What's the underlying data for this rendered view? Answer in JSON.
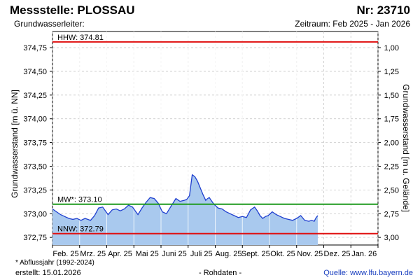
{
  "header": {
    "title": "Messstelle: PLOSSAU",
    "number": "Nr: 23710",
    "aquifer": "Grundwasserleiter:",
    "period": "Zeitraum: Feb 2025 - Jan 2026"
  },
  "footer": {
    "footnote": "* Abflussjahr (1992-2024)",
    "created": "erstellt:  15.01.2026",
    "rawdata": "- Rohdaten -",
    "source": "Quelle: www.lfu.bayern.de"
  },
  "colors": {
    "area_fill": "#a9c9ee",
    "area_line": "#1f3fcf",
    "hhw": "#e01010",
    "mw": "#1f9a1f",
    "nnw": "#e01010",
    "grid": "#c8c8c8"
  },
  "chart_data": {
    "type": "area",
    "title": "",
    "ylabel": "Grundwasserstand [m ü. NN]",
    "y2label": "Grundwasserstand [m u. Gelände]",
    "ylim": [
      372.67,
      374.92
    ],
    "y2lim": [
      3.07,
      0.82
    ],
    "yticks": [
      "374,75",
      "374,50",
      "374,25",
      "374,00",
      "373,75",
      "373,50",
      "373,25",
      "373,00",
      "372,75"
    ],
    "y2ticks": [
      "1,00",
      "1,25",
      "1,50",
      "1,75",
      "2,00",
      "2,25",
      "2,50",
      "2,75",
      "3,00"
    ],
    "xlabels": [
      "Feb. 25",
      "Mrz. 25",
      "Apr. 25",
      "Mai 25",
      "Juni 25",
      "Juli 25",
      "Aug. 25",
      "Sept. 25",
      "Okt. 25",
      "Nov. 25",
      "Dez. 25",
      "Jan. 26"
    ],
    "grid": true,
    "reference_lines": [
      {
        "label": "HHW: 374.81",
        "value": 374.81
      },
      {
        "label": "MW*: 373.10",
        "value": 373.1
      },
      {
        "label": "NNW: 372.79",
        "value": 372.79
      }
    ],
    "series": [
      {
        "x": [
          0,
          0.15,
          0.3,
          0.45,
          0.6,
          0.75,
          0.9,
          1.05,
          1.2,
          1.4,
          1.55,
          1.7,
          1.85,
          1.95,
          2.05,
          2.2,
          2.35,
          2.5,
          2.65,
          2.8,
          2.95,
          3.05,
          3.15,
          3.3,
          3.45,
          3.6,
          3.75,
          3.9,
          4.05,
          4.2,
          4.35,
          4.55,
          4.7,
          4.85,
          4.95,
          5.05,
          5.15,
          5.25,
          5.35,
          5.45,
          5.55,
          5.65,
          5.72,
          5.78,
          5.85,
          5.95,
          6.1,
          6.25,
          6.4,
          6.55,
          6.7,
          6.85,
          7.0,
          7.15,
          7.3,
          7.45,
          7.55,
          7.65,
          7.75,
          7.85,
          7.95,
          8.1,
          8.25,
          8.4,
          8.55,
          8.7,
          8.85,
          9.0,
          9.15,
          9.3,
          9.45,
          9.55,
          9.65,
          9.72,
          9.78
        ],
        "values": [
          373.05,
          373.02,
          372.99,
          372.97,
          372.95,
          372.94,
          372.95,
          372.93,
          372.95,
          372.93,
          372.98,
          373.06,
          373.07,
          373.03,
          372.99,
          373.04,
          373.05,
          373.03,
          373.05,
          373.09,
          373.07,
          373.03,
          372.99,
          373.06,
          373.12,
          373.17,
          373.16,
          373.11,
          373.02,
          373.0,
          373.07,
          373.16,
          373.13,
          373.14,
          373.15,
          373.19,
          373.41,
          373.39,
          373.34,
          373.27,
          373.2,
          373.14,
          373.16,
          373.17,
          373.14,
          373.1,
          373.06,
          373.05,
          373.02,
          373.0,
          372.98,
          372.96,
          372.97,
          372.96,
          373.04,
          373.07,
          373.03,
          372.98,
          372.95,
          372.97,
          372.98,
          373.02,
          372.99,
          372.97,
          372.95,
          372.94,
          372.93,
          372.95,
          372.98,
          372.93,
          372.92,
          372.93,
          372.92,
          372.96,
          372.98
        ]
      }
    ]
  }
}
